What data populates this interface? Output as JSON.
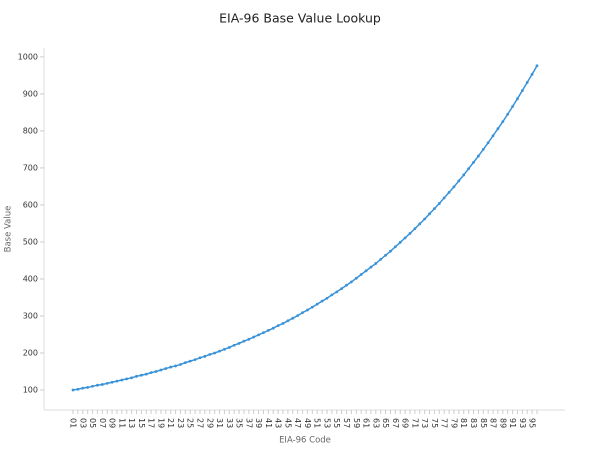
{
  "chart_data": {
    "type": "line",
    "title": "EIA-96 Base Value Lookup",
    "x_label": "EIA-96 Code",
    "y_label": "Base Value",
    "categories": [
      "01",
      null,
      "03",
      null,
      "05",
      null,
      "07",
      null,
      "09",
      null,
      "11",
      null,
      "13",
      null,
      "15",
      null,
      "17",
      null,
      "19",
      null,
      "21",
      null,
      "23",
      null,
      "25",
      null,
      "27",
      null,
      "29",
      null,
      "31",
      null,
      "33",
      null,
      "35",
      null,
      "37",
      null,
      "39",
      null,
      "41",
      null,
      "43",
      null,
      "45",
      null,
      "47",
      null,
      "49",
      null,
      "51",
      null,
      "53",
      null,
      "55",
      null,
      "57",
      null,
      "59",
      null,
      "61",
      null,
      "63",
      null,
      "65",
      null,
      "67",
      null,
      "69",
      null,
      "71",
      null,
      "73",
      null,
      "75",
      null,
      "77",
      null,
      "79",
      null,
      "81",
      null,
      "83",
      null,
      "85",
      null,
      "87",
      null,
      "89",
      null,
      "91",
      null,
      "93",
      null,
      "95",
      null
    ],
    "values": [
      100,
      102,
      105,
      107,
      110,
      113,
      115,
      118,
      121,
      124,
      127,
      130,
      133,
      137,
      140,
      143,
      147,
      150,
      154,
      158,
      162,
      165,
      169,
      174,
      178,
      182,
      187,
      191,
      196,
      200,
      205,
      210,
      215,
      221,
      226,
      232,
      237,
      243,
      249,
      255,
      261,
      267,
      274,
      280,
      287,
      294,
      301,
      309,
      316,
      324,
      332,
      340,
      348,
      357,
      365,
      374,
      383,
      392,
      402,
      412,
      422,
      432,
      442,
      453,
      464,
      475,
      487,
      499,
      511,
      523,
      536,
      549,
      562,
      576,
      590,
      604,
      619,
      634,
      649,
      665,
      681,
      698,
      715,
      732,
      750,
      768,
      787,
      806,
      825,
      845,
      866,
      887,
      909,
      931,
      953,
      976
    ],
    "color": "#3a93d8",
    "ylim": [
      46,
      1024
    ],
    "yticks": [
      100,
      200,
      300,
      400,
      500,
      600,
      700,
      800,
      900,
      1000
    ]
  }
}
